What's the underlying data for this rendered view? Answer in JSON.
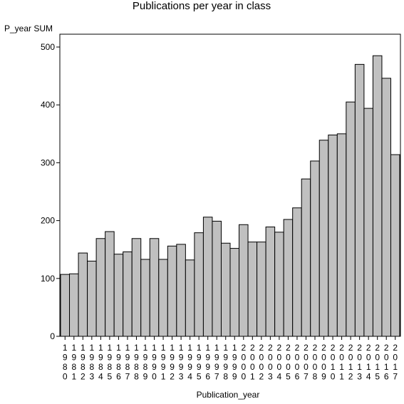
{
  "chart_data": {
    "type": "bar",
    "title": "Publications per year in class",
    "xlabel": "Publication_year",
    "ylabel": "P_year SUM",
    "ylim": [
      0,
      500
    ],
    "yticks": [
      0,
      100,
      200,
      300,
      400,
      500
    ],
    "grid": false,
    "categories": [
      "1980",
      "1981",
      "1982",
      "1983",
      "1984",
      "1985",
      "1986",
      "1987",
      "1988",
      "1989",
      "1990",
      "1991",
      "1992",
      "1993",
      "1994",
      "1995",
      "1996",
      "1997",
      "1998",
      "1999",
      "2000",
      "2001",
      "2002",
      "2003",
      "2004",
      "2005",
      "2006",
      "2007",
      "2008",
      "2009",
      "2010",
      "2011",
      "2012",
      "2013",
      "2014",
      "2015",
      "2016",
      "2017"
    ],
    "values": [
      107,
      108,
      144,
      130,
      169,
      181,
      142,
      146,
      169,
      133,
      169,
      133,
      156,
      159,
      132,
      179,
      206,
      199,
      161,
      152,
      193,
      163,
      163,
      189,
      180,
      202,
      222,
      272,
      303,
      339,
      348,
      350,
      405,
      470,
      394,
      485,
      446,
      314
    ],
    "colors": {
      "bar_fill": "#c0c0c0",
      "bar_stroke": "#000000"
    }
  }
}
